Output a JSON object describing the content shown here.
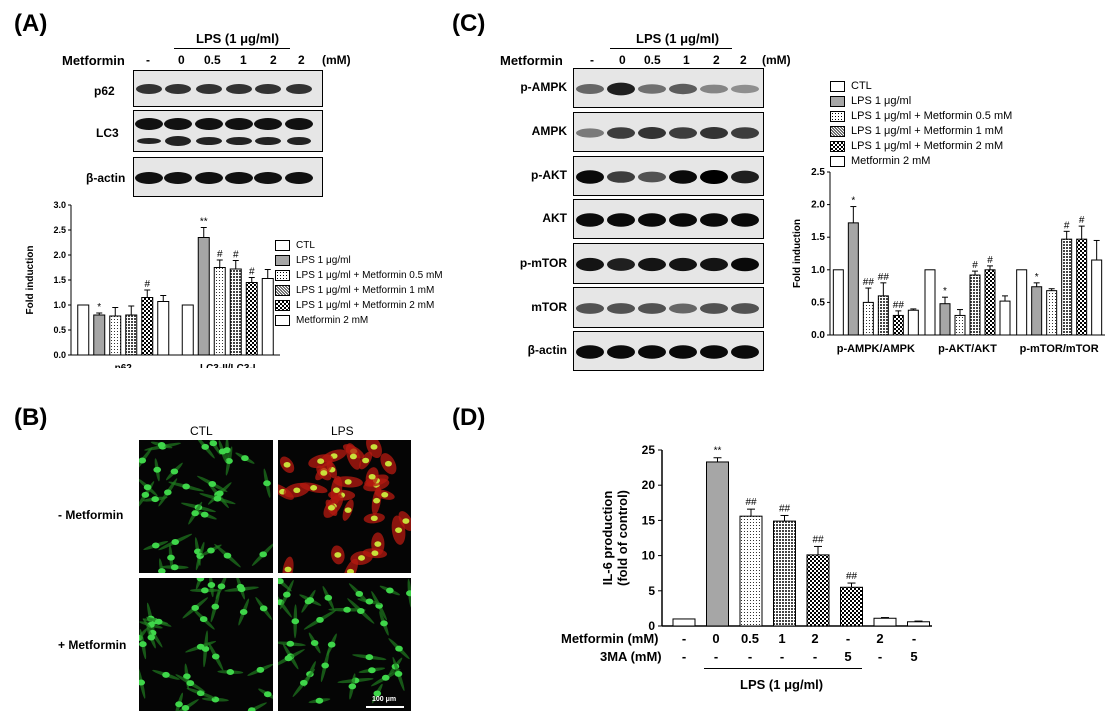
{
  "panelA": {
    "label": "(A)",
    "lps_header": "LPS (1 μg/ml)",
    "metformin_label": "Metformin",
    "doses": [
      "-",
      "0",
      "0.5",
      "1",
      "2",
      "2"
    ],
    "unit": "(mM)",
    "blots": [
      "p62",
      "LC3",
      "β-actin"
    ]
  },
  "panelB": {
    "label": "(B)",
    "columns": [
      "CTL",
      "LPS"
    ],
    "rows": [
      "- Metformin",
      "+ Metformin"
    ],
    "scale_bar": "100 μm"
  },
  "panelC": {
    "label": "(C)",
    "lps_header": "LPS (1 μg/ml)",
    "metformin_label": "Metformin",
    "doses": [
      "-",
      "0",
      "0.5",
      "1",
      "2",
      "2"
    ],
    "unit": "(mM)",
    "blots": [
      "p-AMPK",
      "AMPK",
      "p-AKT",
      "AKT",
      "p-mTOR",
      "mTOR",
      "β-actin"
    ]
  },
  "panelD": {
    "label": "(D)",
    "row_labels": [
      "Metformin (mM)",
      "3MA (mM)"
    ],
    "metformin_values": [
      "-",
      "0",
      "0.5",
      "1",
      "2",
      "-",
      "2",
      "-"
    ],
    "ma_values": [
      "-",
      "-",
      "-",
      "-",
      "-",
      "5",
      "-",
      "5"
    ],
    "lps_label": "LPS (1 μg/ml)"
  },
  "legend_entries": [
    "CTL",
    "LPS 1 μg/ml",
    "LPS 1 μg/ml + Metformin 0.5 mM",
    "LPS 1 μg/ml + Metformin 1 mM",
    "LPS 1 μg/ml + Metformin 2 mM",
    "Metformin 2 mM"
  ],
  "chart_data": [
    {
      "id": "A",
      "type": "bar",
      "title": "",
      "ylabel": "Fold induction",
      "xlabel": "",
      "ylim": [
        0,
        3.0
      ],
      "yticks": [
        "0.0",
        "0.5",
        "1.0",
        "1.5",
        "2.0",
        "2.5",
        "3.0"
      ],
      "categories": [
        "p62",
        "LC3-II/LC3-I"
      ],
      "series": [
        {
          "name": "CTL",
          "values": [
            1.0,
            1.0
          ],
          "errors": [
            0,
            0
          ],
          "marks": [
            "",
            ""
          ]
        },
        {
          "name": "LPS 1 μg/ml",
          "values": [
            0.8,
            2.35
          ],
          "errors": [
            0.04,
            0.2
          ],
          "marks": [
            "*",
            "**"
          ]
        },
        {
          "name": "LPS 1 μg/ml + Metformin 0.5 mM",
          "values": [
            0.78,
            1.75
          ],
          "errors": [
            0.17,
            0.15
          ],
          "marks": [
            "",
            "#"
          ]
        },
        {
          "name": "LPS 1 μg/ml + Metformin 1 mM",
          "values": [
            0.8,
            1.72
          ],
          "errors": [
            0.18,
            0.17
          ],
          "marks": [
            "",
            "#"
          ]
        },
        {
          "name": "LPS 1 μg/ml + Metformin 2 mM",
          "values": [
            1.15,
            1.45
          ],
          "errors": [
            0.15,
            0.1
          ],
          "marks": [
            "#",
            "#"
          ]
        },
        {
          "name": "Metformin 2 mM",
          "values": [
            1.07,
            1.53
          ],
          "errors": [
            0.12,
            0.18
          ],
          "marks": [
            "",
            ""
          ]
        }
      ]
    },
    {
      "id": "C",
      "type": "bar",
      "title": "",
      "ylabel": "Fold induction",
      "xlabel": "",
      "ylim": [
        0,
        2.5
      ],
      "yticks": [
        "0.0",
        "0.5",
        "1.0",
        "1.5",
        "2.0",
        "2.5"
      ],
      "categories": [
        "p-AMPK/AMPK",
        "p-AKT/AKT",
        "p-mTOR/mTOR"
      ],
      "series": [
        {
          "name": "CTL",
          "values": [
            1.0,
            1.0,
            1.0
          ],
          "errors": [
            0,
            0,
            0
          ],
          "marks": [
            "",
            "",
            ""
          ]
        },
        {
          "name": "LPS 1 μg/ml",
          "values": [
            1.72,
            0.48,
            0.74
          ],
          "errors": [
            0.25,
            0.1,
            0.06
          ],
          "marks": [
            "*",
            "*",
            "*"
          ]
        },
        {
          "name": "LPS 1 μg/ml + Metformin 0.5 mM",
          "values": [
            0.5,
            0.3,
            0.68
          ],
          "errors": [
            0.22,
            0.09,
            0.03
          ],
          "marks": [
            "##",
            "",
            ""
          ]
        },
        {
          "name": "LPS 1 μg/ml + Metformin 1 mM",
          "values": [
            0.6,
            0.92,
            1.47
          ],
          "errors": [
            0.2,
            0.06,
            0.12
          ],
          "marks": [
            "##",
            "#",
            "#"
          ]
        },
        {
          "name": "LPS 1 μg/ml + Metformin 2 mM",
          "values": [
            0.3,
            1.0,
            1.47
          ],
          "errors": [
            0.07,
            0.06,
            0.2
          ],
          "marks": [
            "##",
            "#",
            "#"
          ]
        },
        {
          "name": "Metformin 2 mM",
          "values": [
            0.38,
            0.52,
            1.15
          ],
          "errors": [
            0.02,
            0.08,
            0.3
          ],
          "marks": [
            "",
            "",
            ""
          ]
        }
      ]
    },
    {
      "id": "D",
      "type": "bar",
      "title": "",
      "ylabel": "IL-6 production\n(fold of control)",
      "xlabel": "",
      "ylim": [
        0,
        25
      ],
      "yticks": [
        "0",
        "5",
        "10",
        "15",
        "20",
        "25"
      ],
      "categories": [
        "1",
        "2",
        "3",
        "4",
        "5",
        "6",
        "7",
        "8"
      ],
      "values": [
        1.0,
        23.3,
        15.6,
        14.9,
        10.1,
        5.5,
        1.1,
        0.6
      ],
      "errors": [
        0,
        0.6,
        1.0,
        0.8,
        1.2,
        0.6,
        0.1,
        0.1
      ],
      "marks": [
        "",
        "**",
        "##",
        "##",
        "##",
        "##",
        "",
        ""
      ]
    }
  ]
}
